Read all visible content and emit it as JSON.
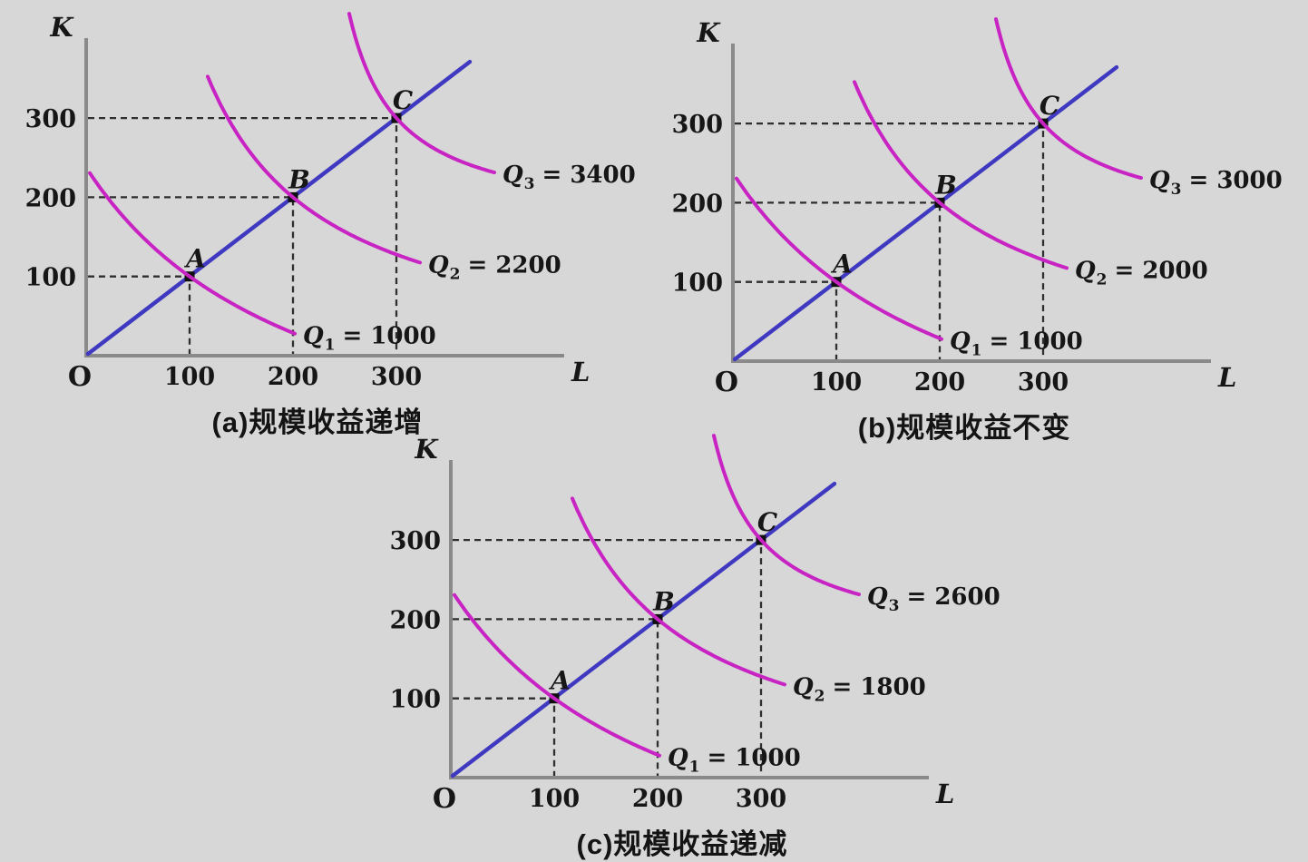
{
  "page": {
    "background": "#d7d7d7"
  },
  "colors": {
    "isoquant": "#c823c3",
    "ray": "#3f38c0",
    "axis": "#8a8a8a",
    "guide": "#2e2e2e",
    "point": "#0f0f0f",
    "text": "#161616"
  },
  "chart_data": [
    {
      "id": "a",
      "type": "line",
      "title": "(a)规模收益递增",
      "xlabel": "L",
      "ylabel": "K",
      "origin_label": "O",
      "x_ticks": [
        100,
        200,
        300
      ],
      "y_ticks": [
        100,
        200,
        300
      ],
      "xlim": [
        0,
        460
      ],
      "ylim": [
        0,
        400
      ],
      "grid": false,
      "ray": {
        "from_LK": [
          0,
          0
        ],
        "to_LK": [
          371,
          371
        ]
      },
      "points": [
        {
          "name": "A",
          "L": 100,
          "K": 100
        },
        {
          "name": "B",
          "L": 200,
          "K": 200
        },
        {
          "name": "C",
          "L": 300,
          "K": 300
        }
      ],
      "isoquants": [
        {
          "symbol": "Q",
          "subscript": "1",
          "value": "1000",
          "through": "A"
        },
        {
          "symbol": "Q",
          "subscript": "2",
          "value": "2200",
          "through": "B"
        },
        {
          "symbol": "Q",
          "subscript": "3",
          "value": "3400",
          "through": "C"
        }
      ]
    },
    {
      "id": "b",
      "type": "line",
      "title": "(b)规模收益不变",
      "xlabel": "L",
      "ylabel": "K",
      "origin_label": "O",
      "x_ticks": [
        100,
        200,
        300
      ],
      "y_ticks": [
        100,
        200,
        300
      ],
      "xlim": [
        0,
        460
      ],
      "ylim": [
        0,
        400
      ],
      "grid": false,
      "ray": {
        "from_LK": [
          0,
          0
        ],
        "to_LK": [
          371,
          371
        ]
      },
      "points": [
        {
          "name": "A",
          "L": 100,
          "K": 100
        },
        {
          "name": "B",
          "L": 200,
          "K": 200
        },
        {
          "name": "C",
          "L": 300,
          "K": 300
        }
      ],
      "isoquants": [
        {
          "symbol": "Q",
          "subscript": "1",
          "value": "1000",
          "through": "A"
        },
        {
          "symbol": "Q",
          "subscript": "2",
          "value": "2000",
          "through": "B"
        },
        {
          "symbol": "Q",
          "subscript": "3",
          "value": "3000",
          "through": "C"
        }
      ]
    },
    {
      "id": "c",
      "type": "line",
      "title": "(c)规模收益递减",
      "xlabel": "L",
      "ylabel": "K",
      "origin_label": "O",
      "x_ticks": [
        100,
        200,
        300
      ],
      "y_ticks": [
        100,
        200,
        300
      ],
      "xlim": [
        0,
        460
      ],
      "ylim": [
        0,
        400
      ],
      "grid": false,
      "ray": {
        "from_LK": [
          0,
          0
        ],
        "to_LK": [
          371,
          371
        ]
      },
      "points": [
        {
          "name": "A",
          "L": 100,
          "K": 100
        },
        {
          "name": "B",
          "L": 200,
          "K": 200
        },
        {
          "name": "C",
          "L": 300,
          "K": 300
        }
      ],
      "isoquants": [
        {
          "symbol": "Q",
          "subscript": "1",
          "value": "1000",
          "through": "A"
        },
        {
          "symbol": "Q",
          "subscript": "2",
          "value": "1800",
          "through": "B"
        },
        {
          "symbol": "Q",
          "subscript": "3",
          "value": "2600",
          "through": "C"
        }
      ]
    }
  ]
}
